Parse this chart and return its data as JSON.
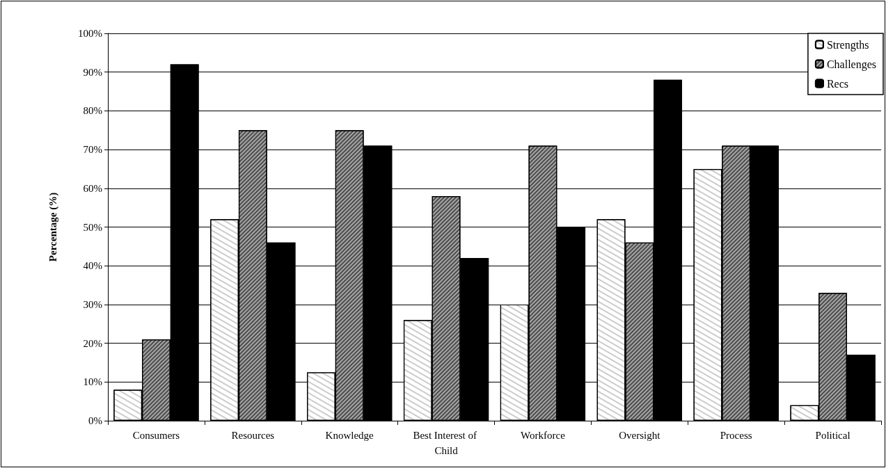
{
  "chart_data": {
    "type": "bar",
    "ylabel": "Percentage (%)",
    "categories": [
      "Consumers",
      "Resources",
      "Knowledge",
      "Best Interest of Child",
      "Workforce",
      "Oversight",
      "Process",
      "Political"
    ],
    "series": [
      {
        "name": "Strengths",
        "color": "#ffffff",
        "values": [
          8,
          52,
          12.5,
          26,
          30,
          52,
          65,
          4
        ]
      },
      {
        "name": "Challenges",
        "color": "#a6a6a6",
        "values": [
          21,
          75,
          75,
          58,
          71,
          46,
          71,
          33
        ]
      },
      {
        "name": "Recs",
        "color": "#000000",
        "values": [
          92,
          46,
          71,
          42,
          50,
          88,
          71,
          17
        ]
      }
    ],
    "ylim": [
      0,
      100
    ],
    "yticks": [
      {
        "value": 0,
        "label": "0%"
      },
      {
        "value": 10,
        "label": "10%"
      },
      {
        "value": 20,
        "label": "20%"
      },
      {
        "value": 30,
        "label": "30%"
      },
      {
        "value": 40,
        "label": "40%"
      },
      {
        "value": 50,
        "label": "50%"
      },
      {
        "value": 60,
        "label": "60%"
      },
      {
        "value": 70,
        "label": "70%"
      },
      {
        "value": 80,
        "label": "80%"
      },
      {
        "value": 90,
        "label": "90%"
      },
      {
        "value": 100,
        "label": "100%"
      }
    ],
    "grid": "y",
    "legend": "top right"
  }
}
